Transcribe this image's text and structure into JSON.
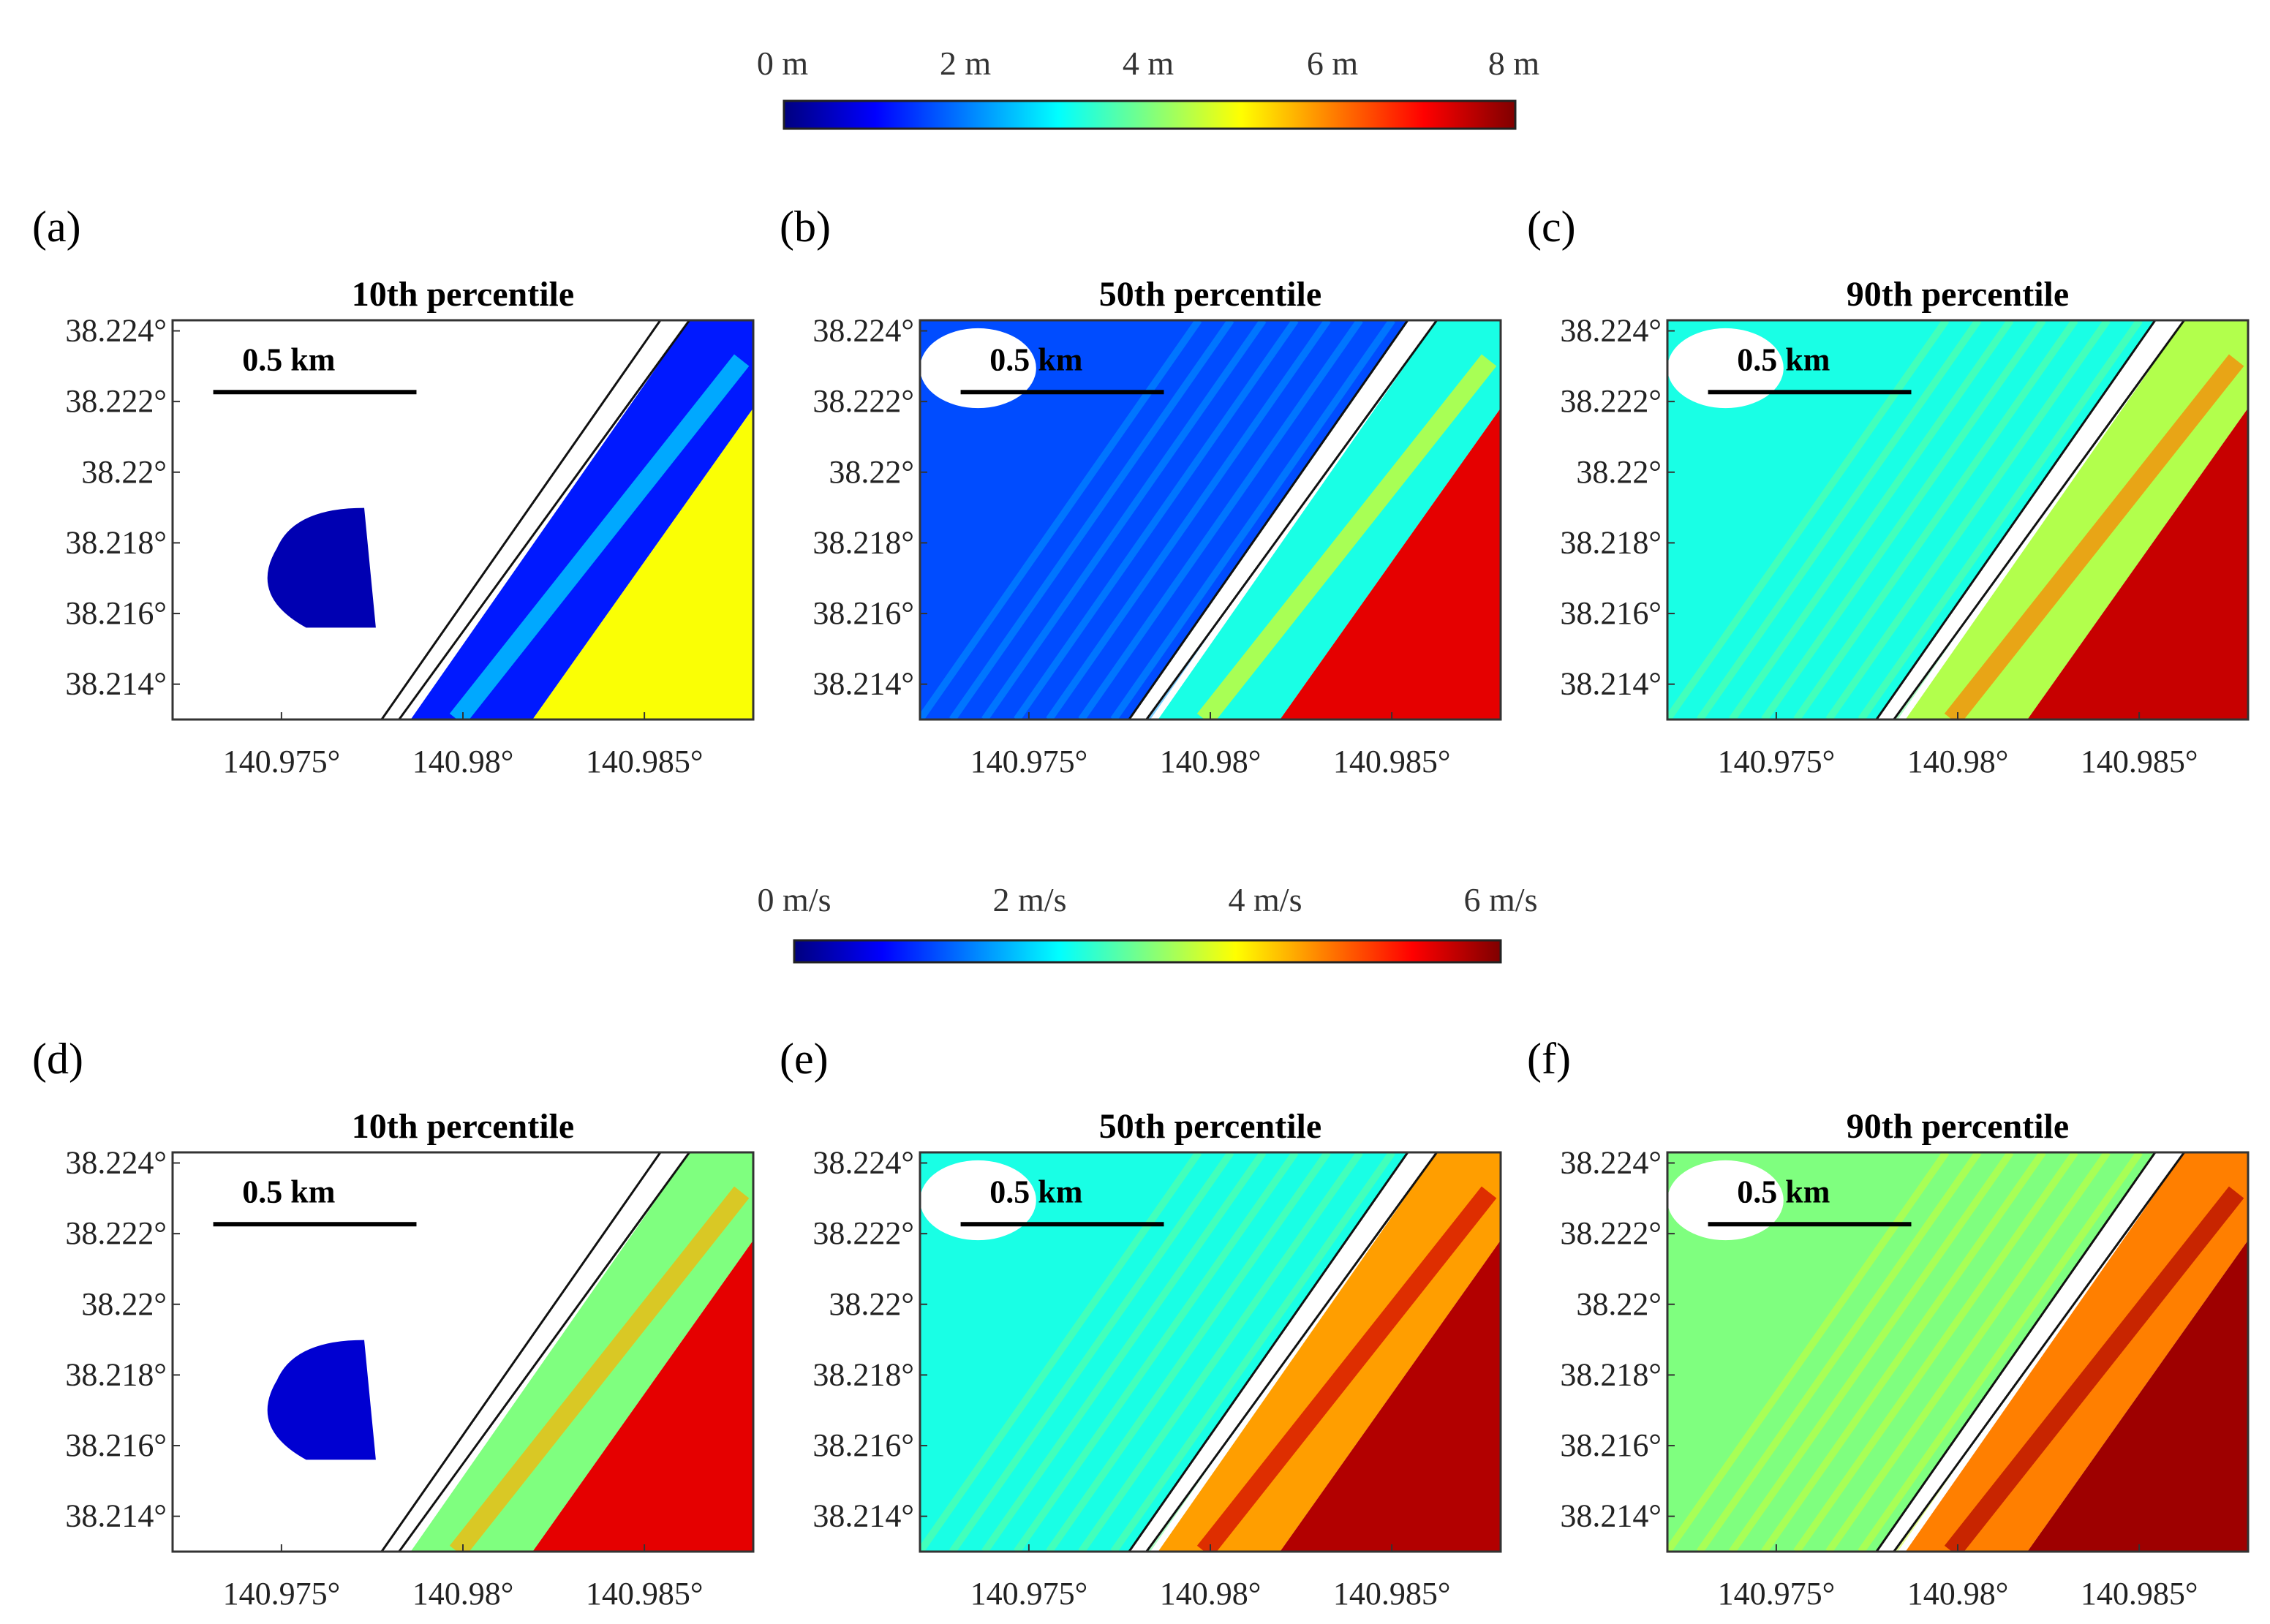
{
  "colors": {
    "colormap_jet": [
      "#00007f",
      "#0000ff",
      "#007fff",
      "#00ffff",
      "#7fff7f",
      "#ffff00",
      "#ff7f00",
      "#ff0000",
      "#7f0000"
    ],
    "coast_white": "#ffffff",
    "axis": "#333333"
  },
  "chart_data": [
    {
      "type": "heatmap",
      "id": "a",
      "panel_label": "(a)",
      "title": "10th percentile",
      "variable": "depth",
      "colorbar": 0,
      "scale_bar": "0.5 km",
      "yticks": [
        "38.214°",
        "38.216°",
        "38.218°",
        "38.22°",
        "38.222°",
        "38.224°"
      ],
      "xticks": [
        "140.975°",
        "140.98°",
        "140.985°"
      ],
      "x_range": [
        140.972,
        140.988
      ],
      "y_range": [
        38.213,
        38.2243
      ],
      "bands": {
        "inland": 0.05,
        "strip": 0.15,
        "sea": 0.62
      },
      "inland_extent": "patch"
    },
    {
      "type": "heatmap",
      "id": "b",
      "panel_label": "(b)",
      "title": "50th percentile",
      "variable": "depth",
      "colorbar": 0,
      "scale_bar": "0.5 km",
      "yticks": [
        "38.214°",
        "38.216°",
        "38.218°",
        "38.22°",
        "38.222°",
        "38.224°"
      ],
      "xticks": [
        "140.975°",
        "140.98°",
        "140.985°"
      ],
      "x_range": [
        140.972,
        140.988
      ],
      "y_range": [
        38.213,
        38.2243
      ],
      "bands": {
        "inland": 0.2,
        "strip": 0.4,
        "sea": 0.9
      },
      "inland_extent": "full"
    },
    {
      "type": "heatmap",
      "id": "c",
      "panel_label": "(c)",
      "title": "90th percentile",
      "variable": "depth",
      "colorbar": 0,
      "scale_bar": "0.5 km",
      "yticks": [
        "38.214°",
        "38.216°",
        "38.218°",
        "38.22°",
        "38.222°",
        "38.224°"
      ],
      "xticks": [
        "140.975°",
        "140.98°",
        "140.985°"
      ],
      "x_range": [
        140.972,
        140.988
      ],
      "y_range": [
        38.213,
        38.2243
      ],
      "bands": {
        "inland": 0.4,
        "strip": 0.55,
        "sea": 0.93
      },
      "inland_extent": "full"
    },
    {
      "type": "heatmap",
      "id": "d",
      "panel_label": "(d)",
      "title": "10th percentile",
      "variable": "velocity",
      "colorbar": 1,
      "scale_bar": "0.5 km",
      "yticks": [
        "38.214°",
        "38.216°",
        "38.218°",
        "38.22°",
        "38.222°",
        "38.224°"
      ],
      "xticks": [
        "140.975°",
        "140.98°",
        "140.985°"
      ],
      "x_range": [
        140.972,
        140.988
      ],
      "y_range": [
        38.213,
        38.2243
      ],
      "bands": {
        "inland": 0.08,
        "strip": 0.5,
        "sea": 0.9
      },
      "inland_extent": "patch"
    },
    {
      "type": "heatmap",
      "id": "e",
      "panel_label": "(e)",
      "title": "50th percentile",
      "variable": "velocity",
      "colorbar": 1,
      "scale_bar": "0.5 km",
      "yticks": [
        "38.214°",
        "38.216°",
        "38.218°",
        "38.22°",
        "38.222°",
        "38.224°"
      ],
      "xticks": [
        "140.975°",
        "140.98°",
        "140.985°"
      ],
      "x_range": [
        140.972,
        140.988
      ],
      "y_range": [
        38.213,
        38.2243
      ],
      "bands": {
        "inland": 0.4,
        "strip": 0.72,
        "sea": 0.95
      },
      "inland_extent": "full"
    },
    {
      "type": "heatmap",
      "id": "f",
      "panel_label": "(f)",
      "title": "90th percentile",
      "variable": "velocity",
      "colorbar": 1,
      "scale_bar": "0.5 km",
      "yticks": [
        "38.214°",
        "38.216°",
        "38.218°",
        "38.22°",
        "38.222°",
        "38.224°"
      ],
      "xticks": [
        "140.975°",
        "140.98°",
        "140.985°"
      ],
      "x_range": [
        140.972,
        140.988
      ],
      "y_range": [
        38.213,
        38.2243
      ],
      "bands": {
        "inland": 0.5,
        "strip": 0.75,
        "sea": 0.97
      },
      "inland_extent": "full"
    }
  ],
  "colorbars": [
    {
      "variable": "depth",
      "range": [
        0,
        8
      ],
      "labels": [
        "0 m",
        "2 m",
        "4 m",
        "6 m",
        "8 m"
      ]
    },
    {
      "variable": "velocity",
      "range": [
        0,
        6
      ],
      "labels": [
        "0 m/s",
        "2 m/s",
        "4 m/s",
        "6 m/s"
      ]
    }
  ]
}
